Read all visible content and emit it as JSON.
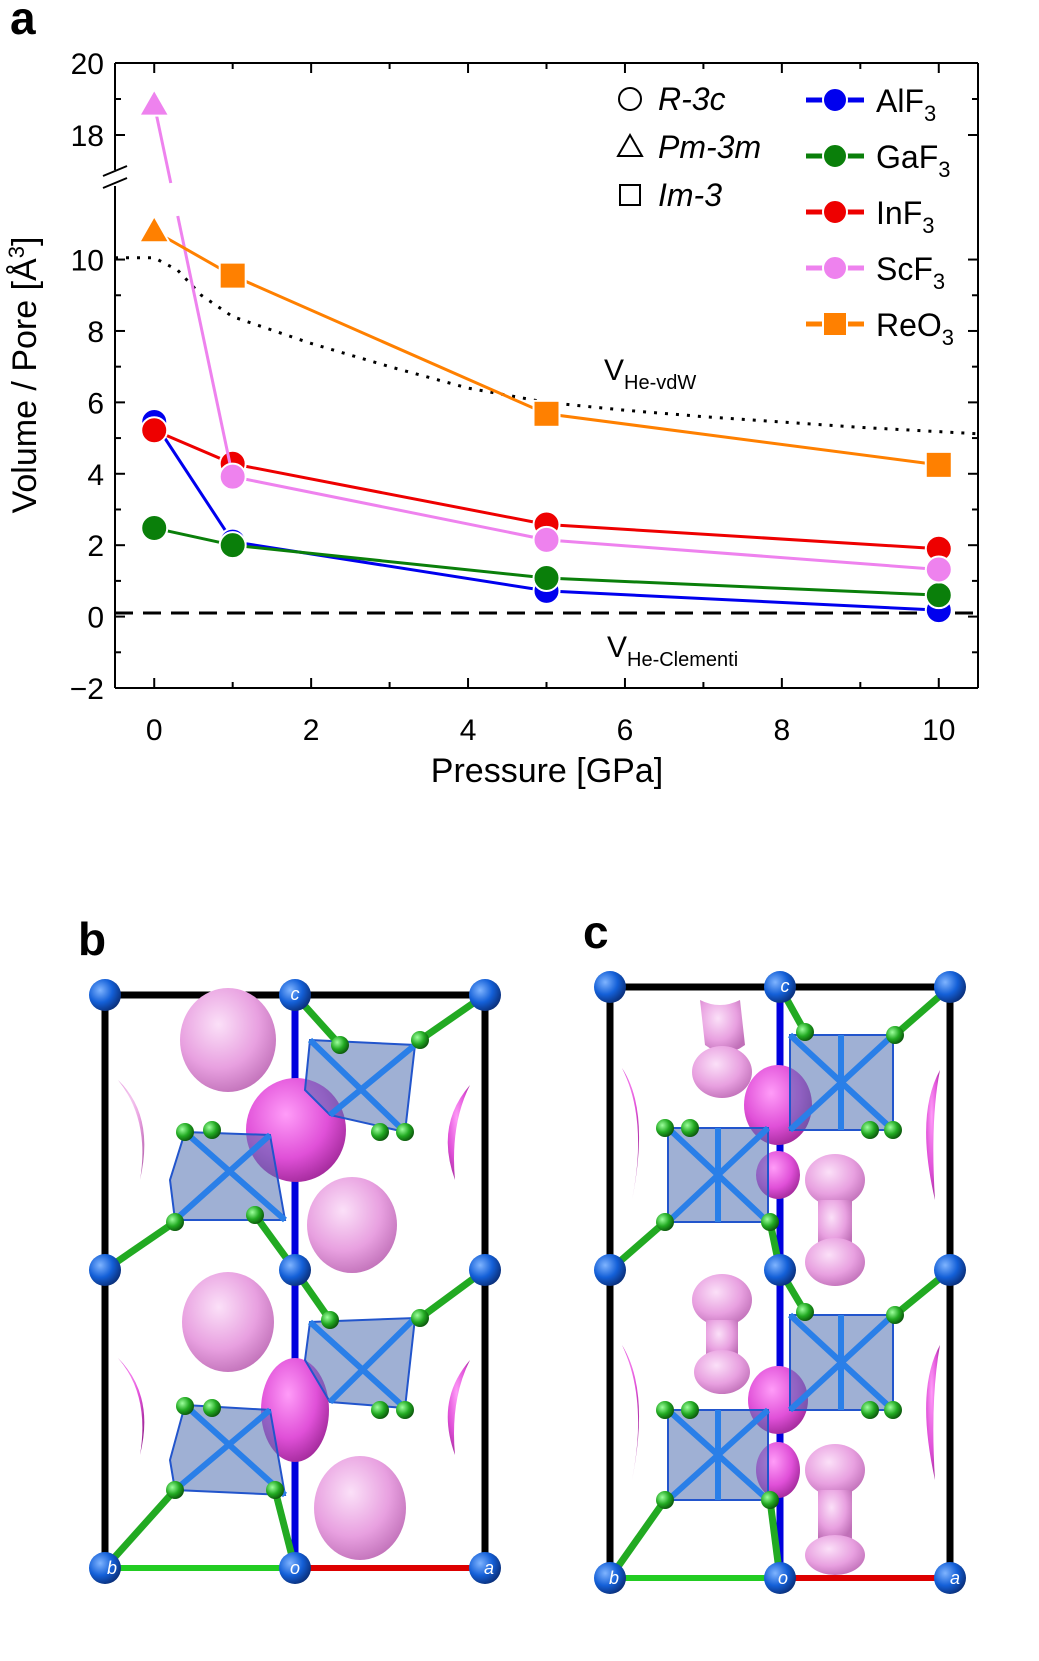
{
  "panels": {
    "a": "a",
    "b": "b",
    "c": "c"
  },
  "chart_data": {
    "type": "line",
    "title": "",
    "xlabel": "Pressure [GPa]",
    "ylabel": "Volume / Pore [Å",
    "ylabel_sup": "3",
    "ylabel_end": "]",
    "xlim": [
      -0.5,
      10.5
    ],
    "ylim_lower": [
      -2,
      11.5
    ],
    "ylim_upper": [
      16.5,
      20
    ],
    "axis_break": [
      11.5,
      16.5
    ],
    "xticks": [
      0,
      2,
      4,
      6,
      8,
      10
    ],
    "xtick_labels": [
      "0",
      "2",
      "4",
      "6",
      "8",
      "10"
    ],
    "yticks": [
      -2,
      0,
      2,
      4,
      6,
      8,
      10,
      18,
      20
    ],
    "ytick_labels": [
      "−2",
      "0",
      "2",
      "4",
      "6",
      "8",
      "10",
      "18",
      "20"
    ],
    "series": [
      {
        "name": "AlF",
        "sub": "3",
        "color": "#0000ee",
        "marker": "circle",
        "x": [
          0,
          1,
          5,
          10
        ],
        "y": [
          5.45,
          2.1,
          0.72,
          0.18
        ],
        "markers": [
          "circle",
          "circle",
          "circle",
          "circle"
        ]
      },
      {
        "name": "GaF",
        "sub": "3",
        "color": "#0a7f0a",
        "marker": "circle",
        "x": [
          0,
          1,
          5,
          10
        ],
        "y": [
          2.48,
          2.0,
          1.08,
          0.6
        ],
        "markers": [
          "circle",
          "circle",
          "circle",
          "circle"
        ]
      },
      {
        "name": "InF",
        "sub": "3",
        "color": "#ee0000",
        "marker": "circle",
        "x": [
          0,
          1,
          5,
          10
        ],
        "y": [
          5.22,
          4.28,
          2.58,
          1.9
        ],
        "markers": [
          "circle",
          "circle",
          "circle",
          "circle"
        ]
      },
      {
        "name": "ScF",
        "sub": "3",
        "color": "#ee82ee",
        "marker": "circle",
        "x": [
          0,
          1,
          5,
          10
        ],
        "y": [
          18.85,
          3.92,
          2.15,
          1.32
        ],
        "markers": [
          "triangle",
          "circle",
          "circle",
          "circle"
        ]
      },
      {
        "name": "ReO",
        "sub": "3",
        "color": "#ff8000",
        "marker": "square",
        "x": [
          0,
          1,
          5,
          10
        ],
        "y": [
          10.8,
          9.55,
          5.68,
          4.25
        ],
        "markers": [
          "triangle",
          "square",
          "square",
          "square"
        ]
      }
    ],
    "reference_lines": [
      {
        "name": "V",
        "sub": "He-vdW",
        "style": "dotted",
        "x": [
          -0.5,
          0,
          0.3,
          0.6,
          1,
          2,
          3,
          4,
          5,
          6,
          7,
          8,
          9,
          10,
          10.5
        ],
        "y": [
          10.05,
          10.05,
          9.7,
          9.0,
          8.4,
          7.65,
          7.0,
          6.4,
          6.0,
          5.78,
          5.6,
          5.45,
          5.3,
          5.18,
          5.12
        ]
      },
      {
        "name": "V",
        "sub": "He-Clementi",
        "style": "dashed",
        "y": 0.1
      }
    ],
    "symmetry_legend": [
      {
        "symbol": "circle",
        "label": "R-3c"
      },
      {
        "symbol": "triangle",
        "label": "Pm-3m"
      },
      {
        "symbol": "square",
        "label": "Im-3"
      }
    ]
  },
  "structures": {
    "b": {
      "corner_labels": {
        "b": "b",
        "o": "o",
        "a": "a",
        "c": "c"
      }
    },
    "c": {
      "corner_labels": {
        "b": "b",
        "o": "o",
        "a": "a",
        "c": "c"
      }
    }
  },
  "colors": {
    "metal": "#1460d8",
    "fluorine": "#22aa22",
    "pore": "#e8a0e0",
    "pore_dark": "#e050d8",
    "octahedron": "#5070b0",
    "axis_a": "#dd0000",
    "axis_b": "#22cc22",
    "axis_c": "#0000dd"
  }
}
